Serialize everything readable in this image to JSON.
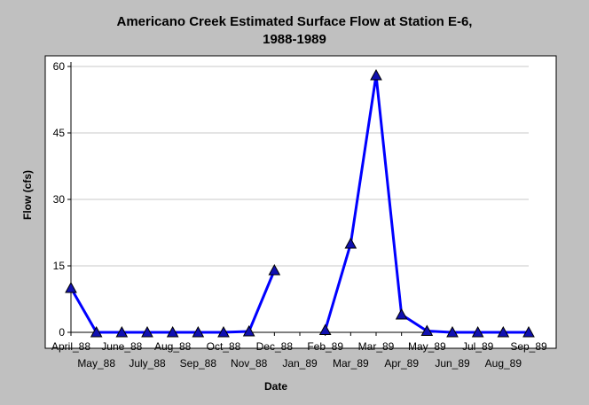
{
  "chart_data": {
    "type": "line",
    "title": "Americano Creek Estimated Surface Flow at Station E-6,",
    "subtitle": "1988-1989",
    "xlabel": "Date",
    "ylabel": "Flow (cfs)",
    "ylim": [
      0,
      62
    ],
    "yticks": [
      0,
      15,
      30,
      45,
      60
    ],
    "grid": true,
    "categories": [
      "April_88",
      "May_88",
      "June_88",
      "July_88",
      "Aug_88",
      "Sep_88",
      "Oct_88",
      "Nov_88",
      "Dec_88",
      "Jan_89",
      "Feb_89",
      "Mar_89",
      "Mar_89",
      "Apr_89",
      "May_89",
      "Jun_89",
      "Jul_89",
      "Aug_89",
      "Sep_89"
    ],
    "series": [
      {
        "color": "#0000ff",
        "values": [
          10,
          0,
          0,
          0,
          0,
          0,
          0,
          0.2,
          14,
          null,
          0.5,
          20,
          58,
          4,
          0.3,
          0,
          0,
          0,
          0
        ]
      }
    ]
  }
}
